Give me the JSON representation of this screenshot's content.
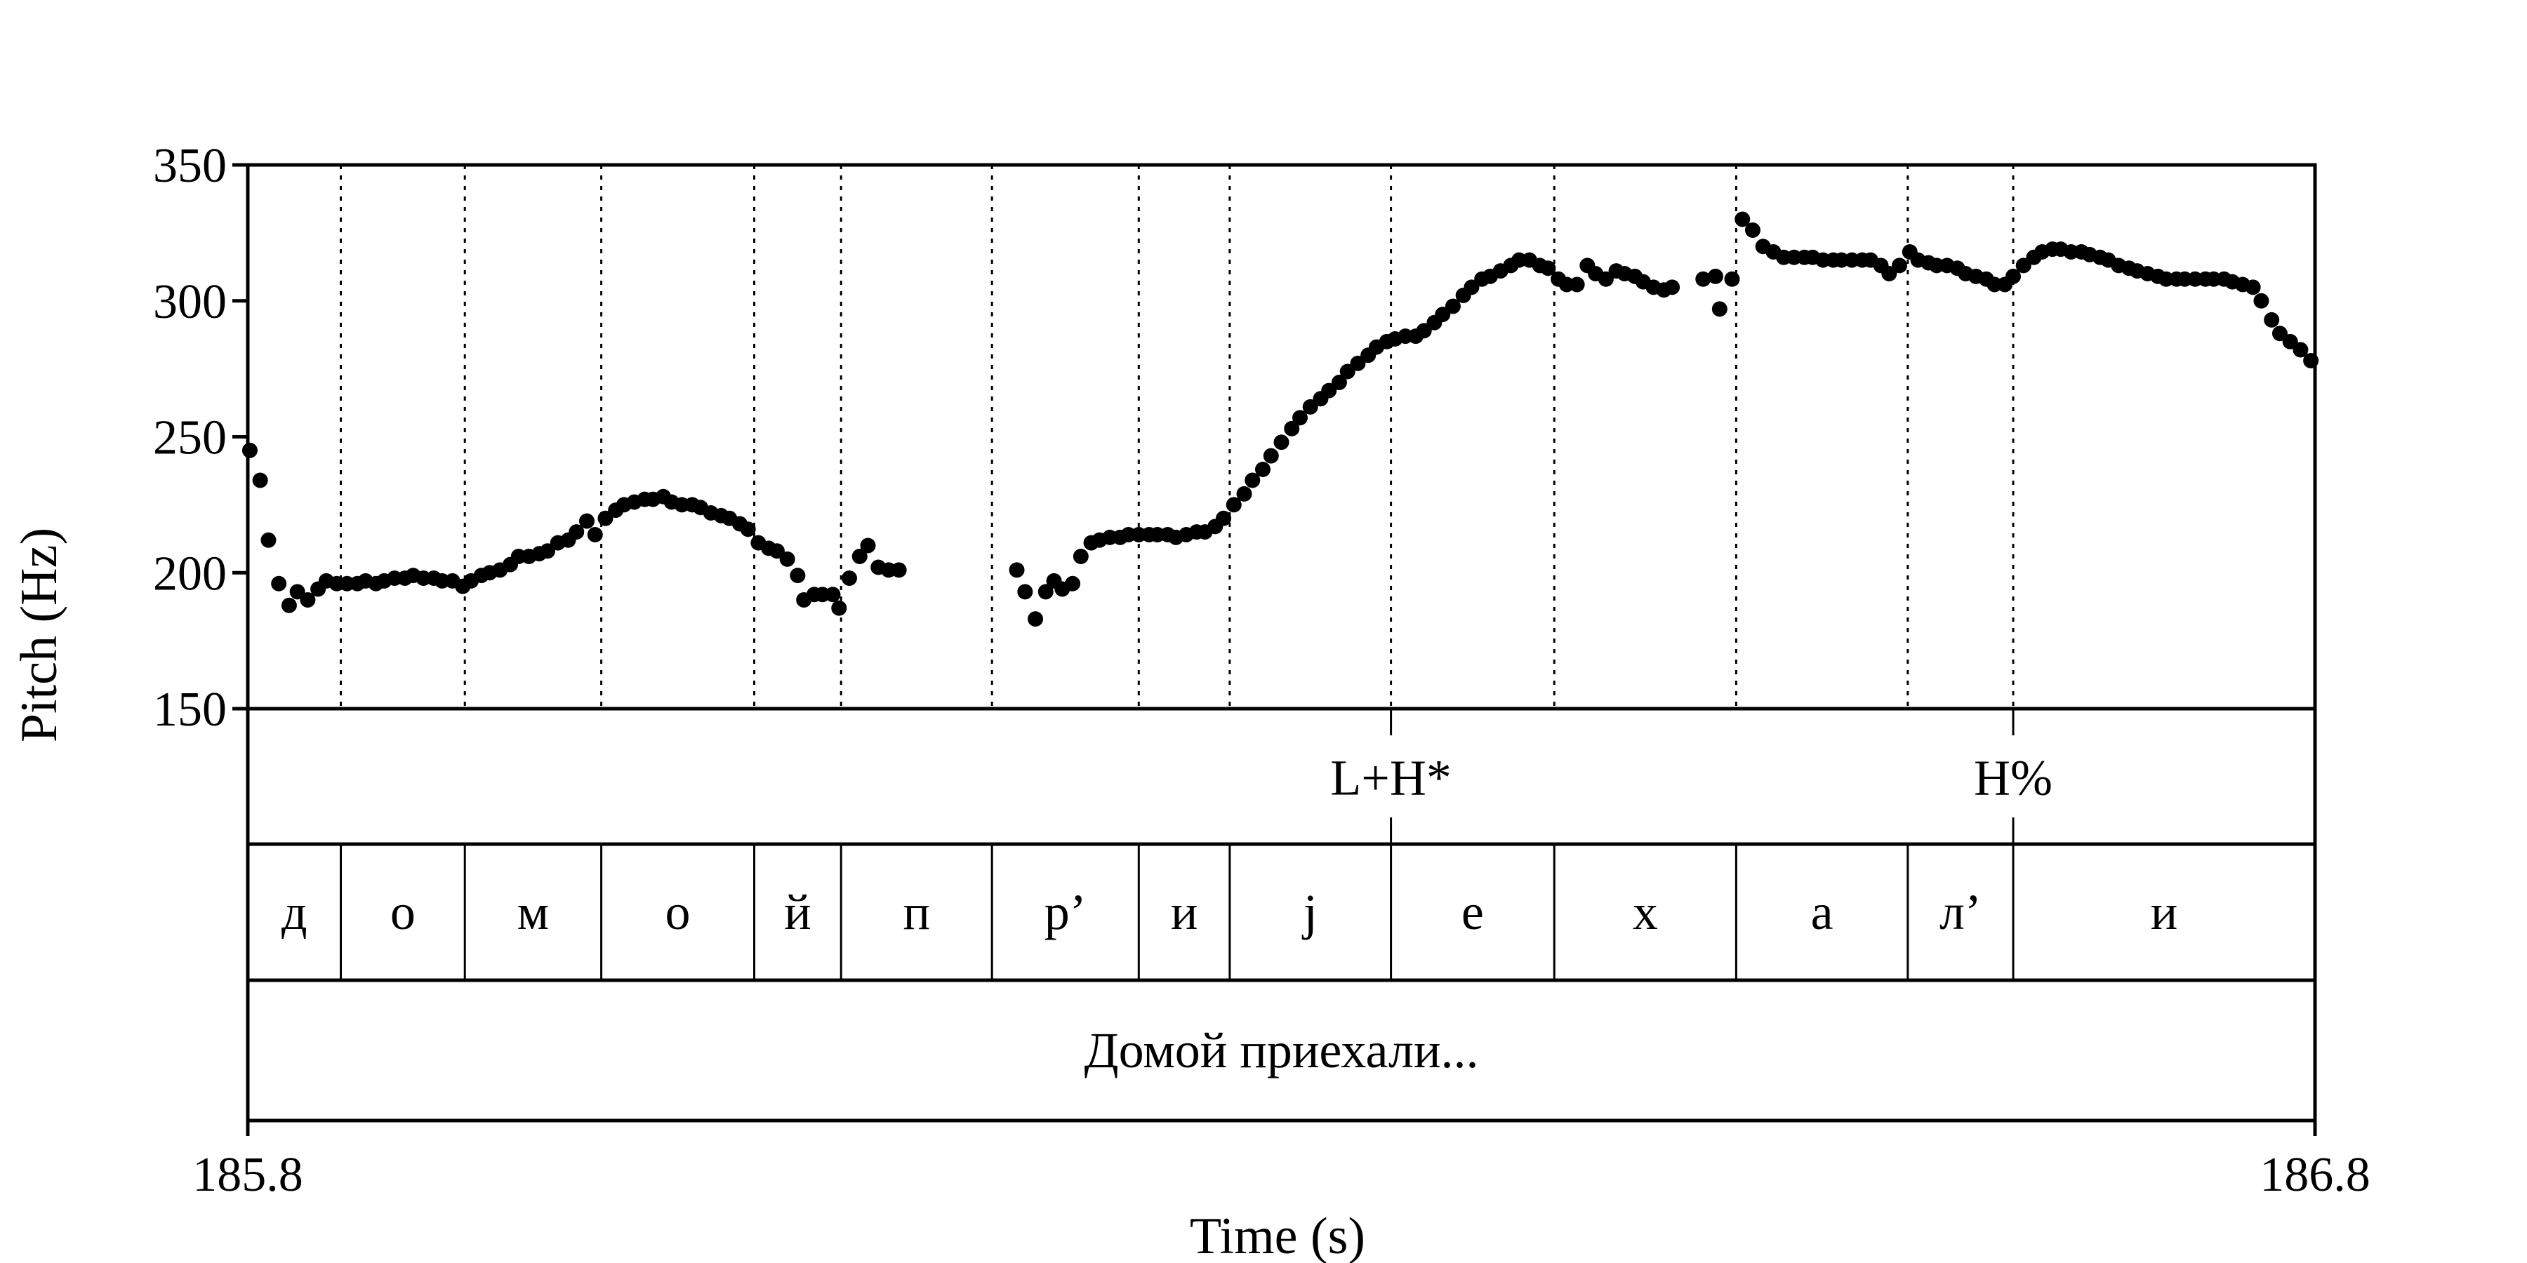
{
  "chart_data": {
    "type": "scatter",
    "title": "",
    "xlabel": "Time (s)",
    "ylabel": "Pitch (Hz)",
    "xlim": [
      185.8,
      186.8
    ],
    "ylim": [
      150,
      350
    ],
    "xticks": [
      "185.8",
      "186.8"
    ],
    "yticks": [
      "350",
      "300",
      "250",
      "200",
      "150"
    ],
    "grid": false,
    "legend": "none",
    "marker_color": "#000000",
    "segment_boundaries": [
      185.8,
      185.845,
      185.905,
      185.971,
      186.045,
      186.087,
      186.16,
      186.231,
      186.275,
      186.353,
      186.432,
      186.52,
      186.603,
      186.654,
      186.8
    ],
    "tones": [
      {
        "time": 186.353,
        "label": "L+H*"
      },
      {
        "time": 186.654,
        "label": "H%"
      }
    ],
    "segments": [
      {
        "label": "д",
        "start": 185.8,
        "end": 185.845
      },
      {
        "label": "о",
        "start": 185.845,
        "end": 185.905
      },
      {
        "label": "м",
        "start": 185.905,
        "end": 185.971
      },
      {
        "label": "о",
        "start": 185.971,
        "end": 186.045
      },
      {
        "label": "й",
        "start": 186.045,
        "end": 186.087
      },
      {
        "label": "п",
        "start": 186.087,
        "end": 186.16
      },
      {
        "label": "р’",
        "start": 186.16,
        "end": 186.231
      },
      {
        "label": "и",
        "start": 186.231,
        "end": 186.275
      },
      {
        "label": "j",
        "start": 186.275,
        "end": 186.353
      },
      {
        "label": "е",
        "start": 186.353,
        "end": 186.432
      },
      {
        "label": "х",
        "start": 186.432,
        "end": 186.52
      },
      {
        "label": "а",
        "start": 186.52,
        "end": 186.603
      },
      {
        "label": "л’",
        "start": 186.603,
        "end": 186.654
      },
      {
        "label": "и",
        "start": 186.654,
        "end": 186.8
      }
    ],
    "sentence": "Домой приехали...",
    "series": [
      {
        "points": [
          [
            185.801,
            245
          ],
          [
            185.806,
            234
          ],
          [
            185.81,
            212
          ],
          [
            185.815,
            196
          ],
          [
            185.82,
            188
          ],
          [
            185.824,
            193
          ],
          [
            185.829,
            190
          ],
          [
            185.834,
            194
          ],
          [
            185.838,
            197
          ],
          [
            185.843,
            196
          ],
          [
            185.848,
            196
          ],
          [
            185.853,
            196
          ],
          [
            185.857,
            197
          ],
          [
            185.862,
            196
          ],
          [
            185.866,
            197
          ],
          [
            185.871,
            198
          ],
          [
            185.876,
            198
          ],
          [
            185.88,
            199
          ],
          [
            185.885,
            198
          ],
          [
            185.89,
            198
          ],
          [
            185.894,
            197
          ],
          [
            185.899,
            197
          ],
          [
            185.904,
            195
          ],
          [
            185.908,
            197
          ],
          [
            185.913,
            199
          ],
          [
            185.917,
            200
          ],
          [
            185.922,
            201
          ],
          [
            185.927,
            203
          ],
          [
            185.931,
            206
          ],
          [
            185.936,
            206
          ],
          [
            185.941,
            207
          ],
          [
            185.945,
            208
          ],
          [
            185.95,
            211
          ],
          [
            185.955,
            212
          ],
          [
            185.959,
            215
          ],
          [
            185.964,
            219
          ],
          [
            185.968,
            214
          ],
          [
            185.973,
            220
          ],
          [
            185.978,
            223
          ],
          [
            185.982,
            225
          ],
          [
            185.987,
            226
          ],
          [
            185.992,
            227
          ],
          [
            185.996,
            227
          ],
          [
            186.001,
            228
          ],
          [
            186.005,
            226
          ],
          [
            186.01,
            225
          ],
          [
            186.015,
            225
          ],
          [
            186.019,
            224
          ],
          [
            186.024,
            222
          ],
          [
            186.029,
            221
          ],
          [
            186.033,
            220
          ],
          [
            186.038,
            218
          ],
          [
            186.042,
            216
          ],
          [
            186.047,
            211
          ],
          [
            186.052,
            209
          ],
          [
            186.056,
            208
          ],
          [
            186.061,
            205
          ],
          [
            186.066,
            199
          ],
          [
            186.069,
            190
          ],
          [
            186.074,
            192
          ],
          [
            186.078,
            192
          ],
          [
            186.083,
            192
          ],
          [
            186.086,
            187
          ],
          [
            186.091,
            198
          ],
          [
            186.096,
            206
          ],
          [
            186.1,
            210
          ],
          [
            186.105,
            202
          ],
          [
            186.11,
            201
          ],
          [
            186.115,
            201
          ],
          [
            186.172,
            201
          ],
          [
            186.176,
            193
          ],
          [
            186.181,
            183
          ],
          [
            186.186,
            193
          ],
          [
            186.19,
            197
          ],
          [
            186.194,
            194
          ],
          [
            186.199,
            196
          ],
          [
            186.203,
            206
          ],
          [
            186.208,
            211
          ],
          [
            186.212,
            212
          ],
          [
            186.217,
            213
          ],
          [
            186.222,
            213
          ],
          [
            186.226,
            214
          ],
          [
            186.231,
            214
          ],
          [
            186.236,
            214
          ],
          [
            186.24,
            214
          ],
          [
            186.245,
            214
          ],
          [
            186.249,
            213
          ],
          [
            186.254,
            214
          ],
          [
            186.259,
            215
          ],
          [
            186.263,
            215
          ],
          [
            186.268,
            217
          ],
          [
            186.272,
            220
          ],
          [
            186.277,
            225
          ],
          [
            186.282,
            229
          ],
          [
            186.286,
            234
          ],
          [
            186.291,
            238
          ],
          [
            186.295,
            243
          ],
          [
            186.3,
            248
          ],
          [
            186.305,
            253
          ],
          [
            186.309,
            257
          ],
          [
            186.314,
            261
          ],
          [
            186.319,
            264
          ],
          [
            186.323,
            267
          ],
          [
            186.328,
            270
          ],
          [
            186.332,
            274
          ],
          [
            186.337,
            277
          ],
          [
            186.342,
            280
          ],
          [
            186.346,
            283
          ],
          [
            186.351,
            285
          ],
          [
            186.355,
            286
          ],
          [
            186.36,
            287
          ],
          [
            186.365,
            287
          ],
          [
            186.369,
            289
          ],
          [
            186.374,
            292
          ],
          [
            186.378,
            295
          ],
          [
            186.383,
            298
          ],
          [
            186.388,
            302
          ],
          [
            186.392,
            305
          ],
          [
            186.397,
            308
          ],
          [
            186.401,
            309
          ],
          [
            186.406,
            311
          ],
          [
            186.411,
            313
          ],
          [
            186.415,
            315
          ],
          [
            186.42,
            315
          ],
          [
            186.425,
            313
          ],
          [
            186.429,
            312
          ],
          [
            186.434,
            308
          ],
          [
            186.438,
            306
          ],
          [
            186.443,
            306
          ],
          [
            186.448,
            313
          ],
          [
            186.452,
            310
          ],
          [
            186.457,
            308
          ],
          [
            186.462,
            311
          ],
          [
            186.466,
            310
          ],
          [
            186.471,
            309
          ],
          [
            186.475,
            307
          ],
          [
            186.48,
            305
          ],
          [
            186.485,
            304
          ],
          [
            186.489,
            305
          ],
          [
            186.504,
            308
          ],
          [
            186.51,
            309
          ],
          [
            186.512,
            297
          ],
          [
            186.518,
            308
          ],
          [
            186.523,
            330
          ],
          [
            186.528,
            326
          ],
          [
            186.533,
            320
          ],
          [
            186.538,
            318
          ],
          [
            186.543,
            316
          ],
          [
            186.548,
            316
          ],
          [
            186.553,
            316
          ],
          [
            186.557,
            316
          ],
          [
            186.562,
            315
          ],
          [
            186.567,
            315
          ],
          [
            186.571,
            315
          ],
          [
            186.576,
            315
          ],
          [
            186.581,
            315
          ],
          [
            186.585,
            315
          ],
          [
            186.59,
            313
          ],
          [
            186.594,
            310
          ],
          [
            186.599,
            313
          ],
          [
            186.604,
            318
          ],
          [
            186.608,
            315
          ],
          [
            186.613,
            314
          ],
          [
            186.617,
            313
          ],
          [
            186.622,
            313
          ],
          [
            186.627,
            312
          ],
          [
            186.631,
            310
          ],
          [
            186.636,
            309
          ],
          [
            186.641,
            308
          ],
          [
            186.645,
            306
          ],
          [
            186.65,
            306
          ],
          [
            186.654,
            309
          ],
          [
            186.659,
            313
          ],
          [
            186.664,
            316
          ],
          [
            186.668,
            318
          ],
          [
            186.673,
            319
          ],
          [
            186.677,
            319
          ],
          [
            186.682,
            318
          ],
          [
            186.687,
            318
          ],
          [
            186.691,
            317
          ],
          [
            186.696,
            316
          ],
          [
            186.7,
            315
          ],
          [
            186.705,
            313
          ],
          [
            186.71,
            312
          ],
          [
            186.714,
            311
          ],
          [
            186.719,
            310
          ],
          [
            186.724,
            309
          ],
          [
            186.728,
            308
          ],
          [
            186.733,
            308
          ],
          [
            186.737,
            308
          ],
          [
            186.742,
            308
          ],
          [
            186.747,
            308
          ],
          [
            186.751,
            308
          ],
          [
            186.756,
            308
          ],
          [
            186.76,
            307
          ],
          [
            186.765,
            306
          ],
          [
            186.77,
            305
          ],
          [
            186.774,
            300
          ],
          [
            186.779,
            293
          ],
          [
            186.783,
            288
          ],
          [
            186.788,
            285
          ],
          [
            186.793,
            282
          ],
          [
            186.798,
            278
          ]
        ]
      }
    ]
  }
}
